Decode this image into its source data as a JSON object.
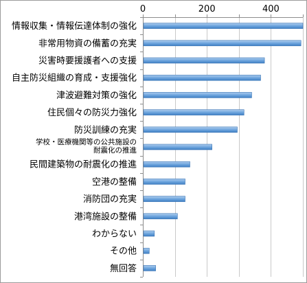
{
  "chart_data": {
    "type": "bar",
    "orientation": "horizontal",
    "title": "",
    "xlabel": "",
    "ylabel": "",
    "xlim": [
      0,
      500
    ],
    "x_ticks": [
      "0",
      "200",
      "400"
    ],
    "x_tick_values": [
      0,
      200,
      400
    ],
    "gridlines": true,
    "bar_color": "#4a86c8",
    "categories": [
      "情報収集・情報伝達体制の強化",
      "非常用物資の備蓄の充実",
      "災害時要援護者への支援",
      "自主防災組織の育成・支援強化",
      "津波避難対策の強化",
      "住民個々の防災力強化",
      "防災訓練の充実",
      "学校・医療機関等の公共施設の耐震化の推進",
      "民間建築物の耐震化の推進",
      "空港の整備",
      "消防団の充実",
      "港湾施設の整備",
      "わからない",
      "その他",
      "無回答"
    ],
    "category_lines": [
      [
        "情報収集・情報伝達体制の強化"
      ],
      [
        "非常用物資の備蓄の充実"
      ],
      [
        "災害時要援護者への支援"
      ],
      [
        "自主防災組織の育成・支援強化"
      ],
      [
        "津波避難対策の強化"
      ],
      [
        "住民個々の防災力強化"
      ],
      [
        "防災訓練の充実"
      ],
      [
        "学校・医療機関等の公共施設の",
        "耐震化の推進"
      ],
      [
        "民間建築物の耐震化の推進"
      ],
      [
        "空港の整備"
      ],
      [
        "消防団の充実"
      ],
      [
        "港湾施設の整備"
      ],
      [
        "わからない"
      ],
      [
        "その他"
      ],
      [
        "無回答"
      ]
    ],
    "values": [
      505,
      494,
      380,
      368,
      340,
      316,
      295,
      216,
      147,
      132,
      132,
      108,
      36,
      20,
      40
    ]
  }
}
